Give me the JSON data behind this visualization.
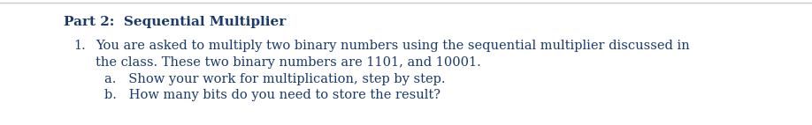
{
  "background_color": "#ffffff",
  "top_line_color": "#c8c8c8",
  "text_color": "#1a3a6b",
  "part_title": "Part 2:  Sequential Multiplier",
  "item_number": "1.",
  "line1": "You are asked to multiply two binary numbers using the sequential multiplier discussed in",
  "line2": "the class. These two binary numbers are 1101, and 10001.",
  "sub_a": "a.   Show your work for multiplication, step by step.",
  "sub_b": "b.   How many bits do you need to store the result?",
  "fig_width": 9.18,
  "fig_height": 1.42,
  "dpi": 100,
  "title_fontsize": 11.0,
  "body_fontsize": 10.5
}
